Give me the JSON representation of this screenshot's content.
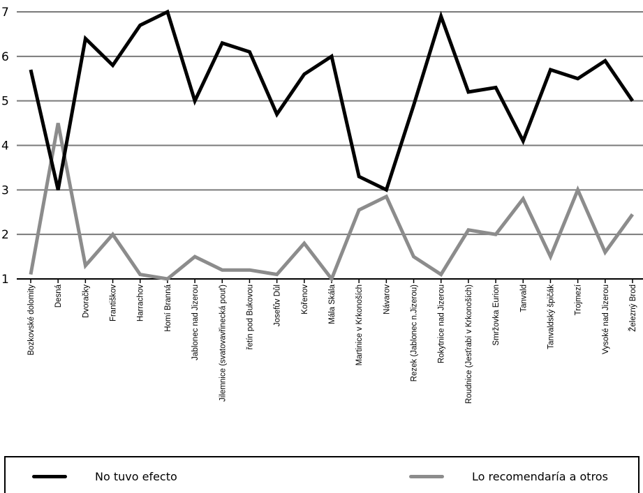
{
  "chart_data": {
    "type": "line",
    "categories": [
      "Bozkovské dolomity",
      "Desná",
      "Dvoračky",
      "Františkov",
      "Harrachov",
      "Homí Branná",
      "Jablonec nad Jizerou",
      "Jilemnice (svatovavřinecká pouť)",
      "řetín pod Bukovou",
      "Josefův Důl",
      "Kořenov",
      "Mála Skála",
      "Martinice v Krkonoších",
      "Návarov",
      "Rezek (Jablonec n.Jizerou)",
      "Rokytnice nad Jizerou",
      "Roudnice (Jesťrabí v Krkonoších)",
      "Smržovka Eurion",
      "Tanvald",
      "Tanvaldský špičák",
      "Trojmezí",
      "Vysoké nad Jizerou",
      "Železný Brod"
    ],
    "series": [
      {
        "name": "No tuvo efecto",
        "color": "#000000",
        "values": [
          5.7,
          3.0,
          6.4,
          5.8,
          6.7,
          7.0,
          5.0,
          6.3,
          6.1,
          4.7,
          5.6,
          6.0,
          3.3,
          3.0,
          4.9,
          6.9,
          5.2,
          5.3,
          4.1,
          5.7,
          5.5,
          5.9,
          5.0
        ]
      },
      {
        "name": "Lo recomendaría a otros",
        "color": "#8c8c8c",
        "values": [
          1.1,
          4.5,
          1.3,
          2.0,
          1.1,
          1.0,
          1.5,
          1.2,
          1.2,
          1.1,
          1.8,
          1.0,
          2.55,
          2.85,
          1.5,
          1.1,
          2.1,
          2.0,
          2.8,
          1.5,
          3.0,
          1.6,
          2.45
        ]
      }
    ],
    "yticks": [
      1,
      2,
      3,
      4,
      5,
      6,
      7
    ],
    "ylim": [
      1,
      7
    ],
    "grid": true,
    "legend_position": "bottom",
    "title": "",
    "xlabel": "",
    "ylabel": ""
  }
}
